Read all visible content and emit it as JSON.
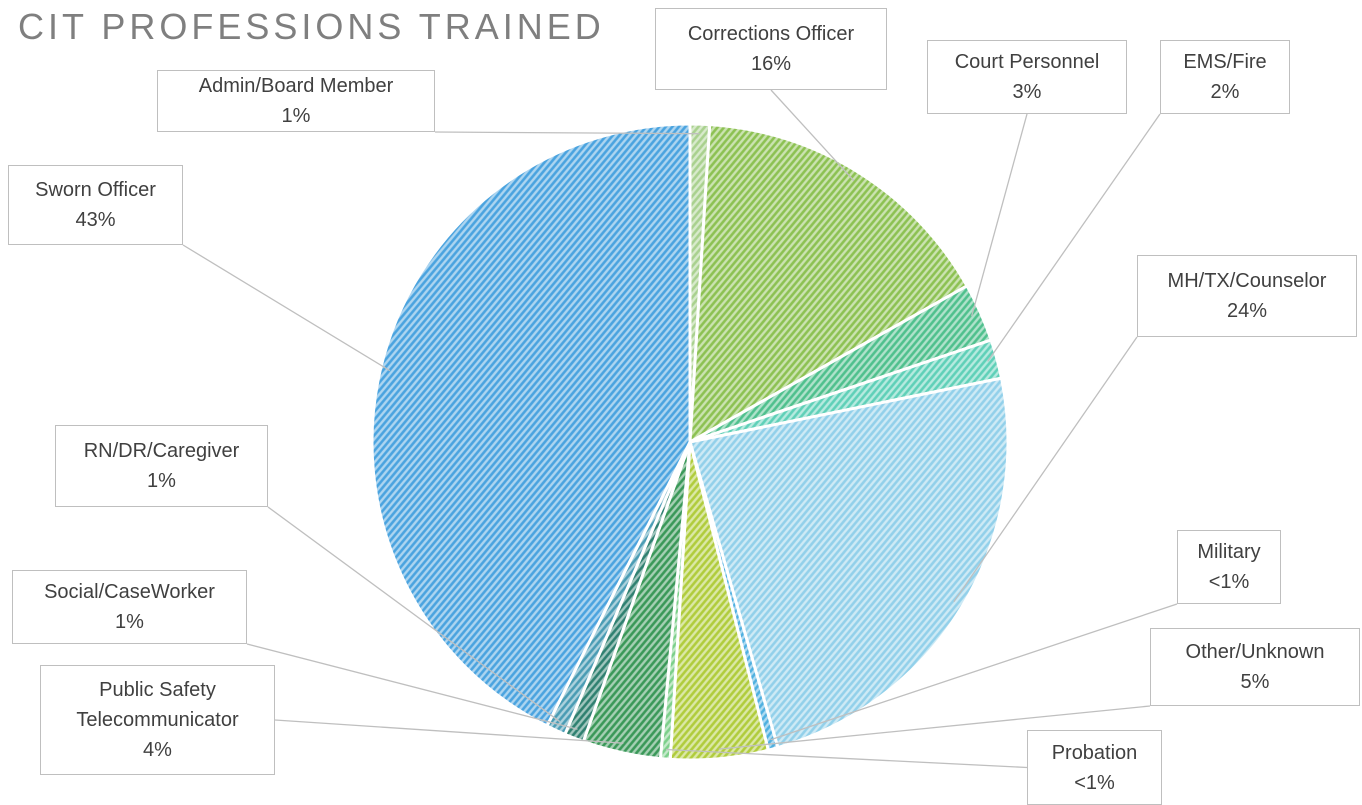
{
  "chart_data": {
    "type": "pie",
    "title": "CIT PROFESSIONS TRAINED",
    "categories": [
      "Admin/Board Member",
      "Corrections Officer",
      "Court Personnel",
      "EMS/Fire",
      "MH/TX/Counselor",
      "Military",
      "Other/Unknown",
      "Probation",
      "Public Safety Telecommunicator",
      "Social/CaseWorker",
      "RN/DR/Caregiver",
      "Sworn Officer"
    ],
    "values": [
      1,
      16,
      3,
      2,
      24,
      0.5,
      5,
      0.5,
      4,
      1,
      1,
      43
    ],
    "value_labels": [
      "1%",
      "16%",
      "3%",
      "2%",
      "24%",
      "<1%",
      "5%",
      "<1%",
      "4%",
      "1%",
      "1%",
      "43%"
    ],
    "colors": [
      "#a9d18e",
      "#8cc152",
      "#4fc08d",
      "#5fd0b8",
      "#92d0ea",
      "#4fb0e0",
      "#b0cc3c",
      "#7ccf8a",
      "#3a9858",
      "#2f8070",
      "#4a9cb4",
      "#4aa3df"
    ]
  }
}
